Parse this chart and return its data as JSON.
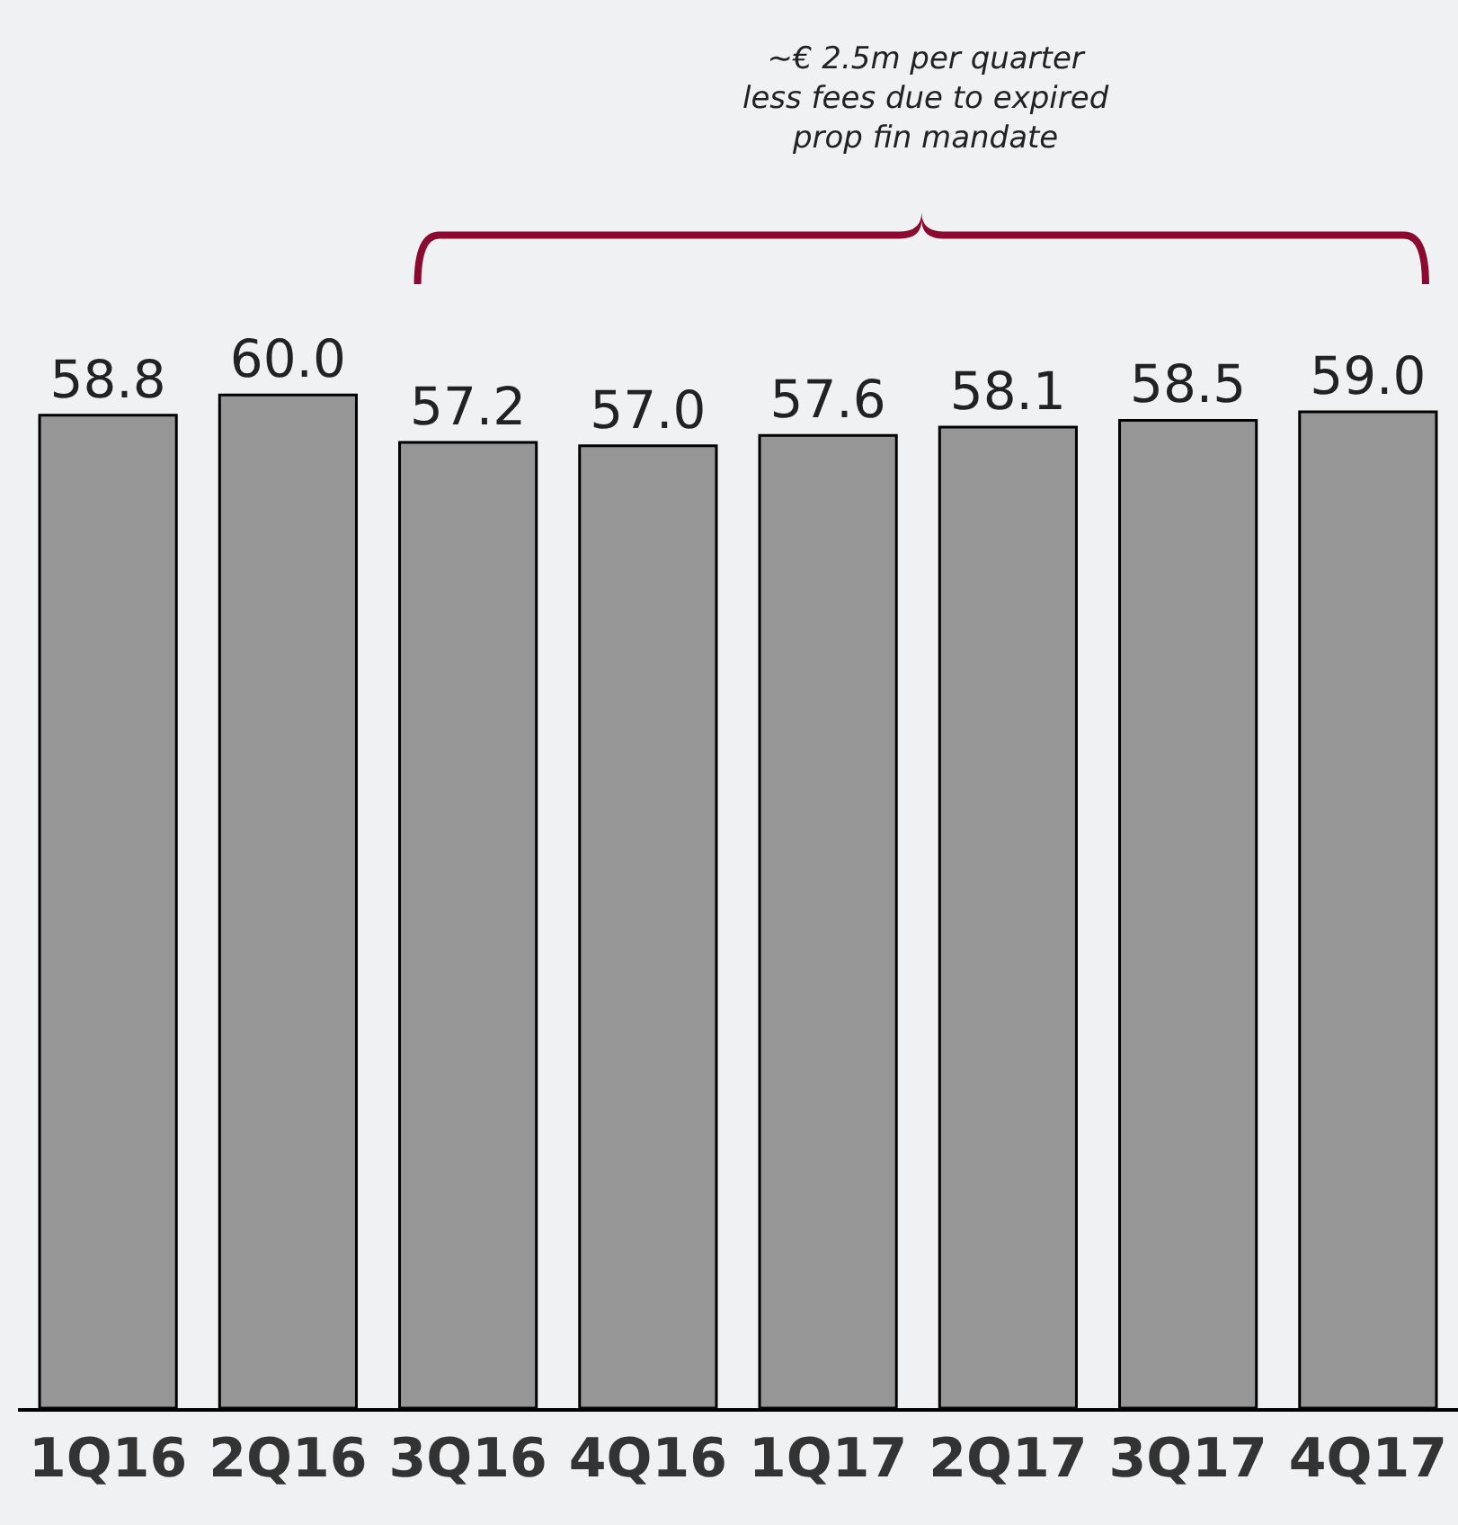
{
  "chart_data": {
    "type": "bar",
    "categories": [
      "1Q16",
      "2Q16",
      "3Q16",
      "4Q16",
      "1Q17",
      "2Q17",
      "3Q17",
      "4Q17"
    ],
    "values": [
      58.8,
      60.0,
      57.2,
      57.0,
      57.6,
      58.1,
      58.5,
      59.0
    ],
    "value_labels": [
      "58.8",
      "60.0",
      "57.2",
      "57.0",
      "57.6",
      "58.1",
      "58.5",
      "59.0"
    ],
    "color": "#969696",
    "annotations": [
      "~€ 2.5m per quarter\nless fees due to expired\nprop fin mandate"
    ],
    "grid": false,
    "tick_labels": "x"
  }
}
